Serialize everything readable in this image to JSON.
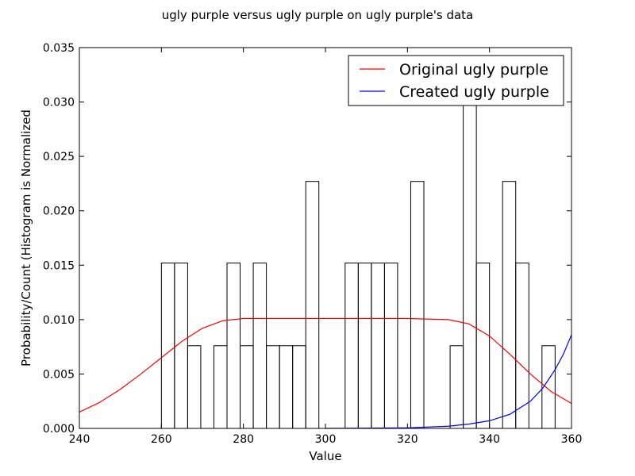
{
  "chart_data": {
    "type": "bar",
    "title": "ugly purple versus ugly purple on ugly purple's data",
    "xlabel": "Value",
    "ylabel": "Probability/Count (Histogram is Normalized",
    "xlim": [
      240,
      360
    ],
    "ylim": [
      0,
      0.035
    ],
    "xticks": [
      240,
      260,
      280,
      300,
      320,
      340,
      360
    ],
    "yticks": [
      0.0,
      0.005,
      0.01,
      0.015,
      0.02,
      0.025,
      0.03,
      0.035
    ],
    "xtick_labels": [
      "240",
      "260",
      "280",
      "300",
      "320",
      "340",
      "360"
    ],
    "ytick_labels": [
      "0.000",
      "0.005",
      "0.010",
      "0.015",
      "0.020",
      "0.025",
      "0.030",
      "0.035"
    ],
    "histogram": {
      "bin_start": 260,
      "bin_width": 3.2,
      "values": [
        0.0152,
        0.0152,
        0.0076,
        0,
        0.0076,
        0.0152,
        0.0076,
        0.0152,
        0.0076,
        0.0076,
        0.0076,
        0.0227,
        0,
        0,
        0.0152,
        0.0152,
        0.0152,
        0.0152,
        0,
        0.0227,
        0,
        0,
        0.0076,
        0.0303,
        0.0152,
        0,
        0.0227,
        0.0152,
        0,
        0.0076
      ],
      "color": "#000000"
    },
    "series": [
      {
        "name": "Original ugly purple",
        "color": "#ff0000",
        "x": [
          240,
          245,
          250,
          255,
          260,
          265,
          270,
          275,
          280,
          290,
          300,
          310,
          320,
          330,
          335,
          340,
          345,
          350,
          355,
          360
        ],
        "y": [
          0.0015,
          0.0024,
          0.0036,
          0.005,
          0.0065,
          0.008,
          0.0092,
          0.0099,
          0.0101,
          0.0101,
          0.0101,
          0.0101,
          0.0101,
          0.01,
          0.0096,
          0.0085,
          0.0068,
          0.005,
          0.0034,
          0.0023
        ]
      },
      {
        "name": "Created ugly purple",
        "color": "#0000ff",
        "x": [
          300,
          320,
          330,
          335,
          340,
          345,
          350,
          353,
          356,
          358,
          360
        ],
        "y": [
          0,
          5e-05,
          0.0002,
          0.0004,
          0.0007,
          0.0013,
          0.0025,
          0.0037,
          0.0054,
          0.0068,
          0.0086
        ]
      }
    ],
    "legend": {
      "placement": "top-right"
    }
  }
}
